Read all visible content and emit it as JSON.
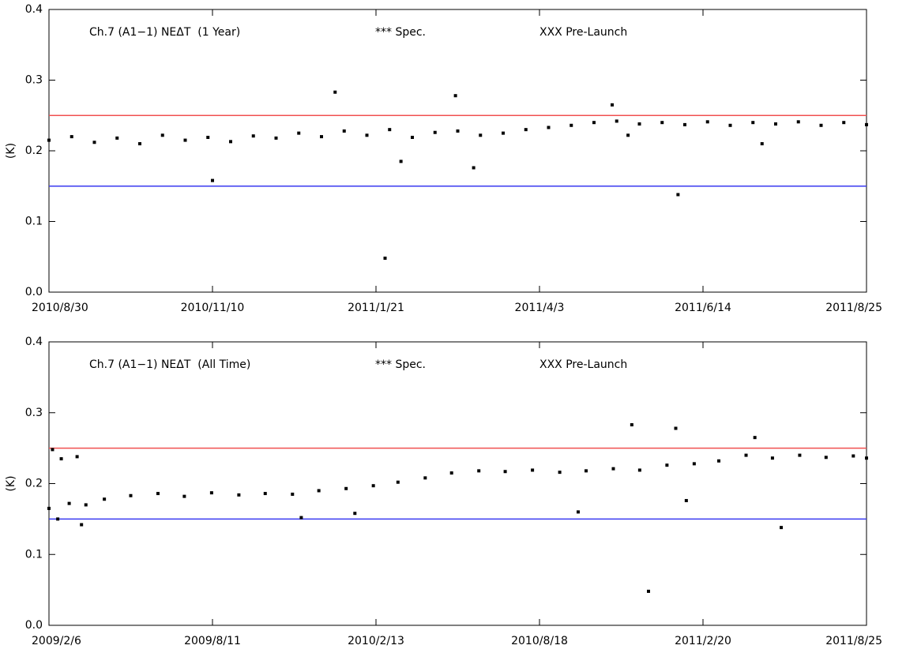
{
  "chart_data": [
    {
      "type": "scatter",
      "title": "Ch.7 (A1−1) NEΔT  (1 Year)",
      "title_color": "#f05050",
      "ylabel": "(K)",
      "color": "#000000",
      "reference_lines": [
        {
          "label": "*** Spec.",
          "value": 0.25,
          "color": "#f05050"
        },
        {
          "label": "XXX Pre-Launch",
          "value": 0.15,
          "color": "#3a3af0"
        }
      ],
      "xlim": [
        "2010/8/30",
        "2011/8/25"
      ],
      "xticks": [
        "2010/8/30",
        "2010/11/10",
        "2011/1/21",
        "2011/4/3",
        "2011/6/14",
        "2011/8/25"
      ],
      "ylim": [
        0,
        0.4
      ],
      "yticks": [
        {
          "value": 0,
          "label": "0.0"
        },
        0.1,
        0.2,
        0.3,
        0.4
      ],
      "x": [
        "2010/8/30",
        "2010/9/9",
        "2010/9/19",
        "2010/9/29",
        "2010/10/9",
        "2010/10/19",
        "2010/10/29",
        "2010/11/8",
        "2010/11/10",
        "2010/11/18",
        "2010/11/28",
        "2010/12/8",
        "2010/12/18",
        "2010/12/28",
        "2011/1/3",
        "2011/1/7",
        "2011/1/17",
        "2011/1/25",
        "2011/1/27",
        "2011/2/1",
        "2011/2/6",
        "2011/2/16",
        "2011/2/25",
        "2011/2/26",
        "2011/3/5",
        "2011/3/8",
        "2011/3/18",
        "2011/3/28",
        "2011/4/7",
        "2011/4/17",
        "2011/4/27",
        "2011/5/5",
        "2011/5/7",
        "2011/5/12",
        "2011/5/17",
        "2011/5/27",
        "2011/6/3",
        "2011/6/6",
        "2011/6/16",
        "2011/6/26",
        "2011/7/6",
        "2011/7/10",
        "2011/7/16",
        "2011/7/26",
        "2011/8/5",
        "2011/8/15",
        "2011/8/25"
      ],
      "values": [
        0.215,
        0.22,
        0.212,
        0.218,
        0.21,
        0.222,
        0.215,
        0.219,
        0.158,
        0.213,
        0.221,
        0.218,
        0.225,
        0.22,
        0.283,
        0.228,
        0.222,
        0.048,
        0.23,
        0.185,
        0.219,
        0.226,
        0.278,
        0.228,
        0.176,
        0.222,
        0.225,
        0.23,
        0.233,
        0.236,
        0.24,
        0.265,
        0.242,
        0.222,
        0.238,
        0.24,
        0.138,
        0.237,
        0.241,
        0.236,
        0.24,
        0.21,
        0.238,
        0.241,
        0.236,
        0.24,
        0.237
      ]
    },
    {
      "type": "scatter",
      "title": "Ch.7 (A1−1) NEΔT  (All Time)",
      "title_color": "#f05050",
      "ylabel": "(K)",
      "color": "#000000",
      "reference_lines": [
        {
          "label": "*** Spec.",
          "value": 0.25,
          "color": "#f05050"
        },
        {
          "label": "XXX Pre-Launch",
          "value": 0.15,
          "color": "#3a3af0"
        }
      ],
      "xlim": [
        "2009/2/6",
        "2011/8/25"
      ],
      "xticks": [
        "2009/2/6",
        "2009/8/11",
        "2010/2/13",
        "2010/8/18",
        "2011/2/20",
        "2011/8/25"
      ],
      "ylim": [
        0,
        0.4
      ],
      "yticks": [
        {
          "value": 0,
          "label": "0.0"
        },
        0.1,
        0.2,
        0.3,
        0.4
      ],
      "x": [
        "2009/2/6",
        "2009/2/10",
        "2009/2/16",
        "2009/2/20",
        "2009/3/1",
        "2009/3/10",
        "2009/3/15",
        "2009/3/20",
        "2009/4/10",
        "2009/5/10",
        "2009/6/10",
        "2009/7/10",
        "2009/8/10",
        "2009/9/10",
        "2009/10/10",
        "2009/11/10",
        "2009/11/20",
        "2009/12/10",
        "2010/1/10",
        "2010/1/20",
        "2010/2/10",
        "2010/3/10",
        "2010/4/10",
        "2010/5/10",
        "2010/6/10",
        "2010/7/10",
        "2010/8/10",
        "2010/9/10",
        "2010/10/1",
        "2010/10/10",
        "2010/11/10",
        "2010/12/1",
        "2010/12/10",
        "2010/12/20",
        "2011/1/10",
        "2011/1/20",
        "2011/2/1",
        "2011/2/10",
        "2011/3/10",
        "2011/4/10",
        "2011/4/20",
        "2011/5/10",
        "2011/5/20",
        "2011/6/10",
        "2011/7/10",
        "2011/8/10",
        "2011/8/25"
      ],
      "values": [
        0.165,
        0.248,
        0.15,
        0.235,
        0.172,
        0.238,
        0.142,
        0.17,
        0.178,
        0.183,
        0.186,
        0.182,
        0.187,
        0.184,
        0.186,
        0.185,
        0.152,
        0.19,
        0.193,
        0.158,
        0.197,
        0.202,
        0.208,
        0.215,
        0.218,
        0.217,
        0.219,
        0.216,
        0.16,
        0.218,
        0.221,
        0.283,
        0.219,
        0.048,
        0.226,
        0.278,
        0.176,
        0.228,
        0.232,
        0.24,
        0.265,
        0.236,
        0.138,
        0.24,
        0.237,
        0.239,
        0.236
      ]
    }
  ]
}
